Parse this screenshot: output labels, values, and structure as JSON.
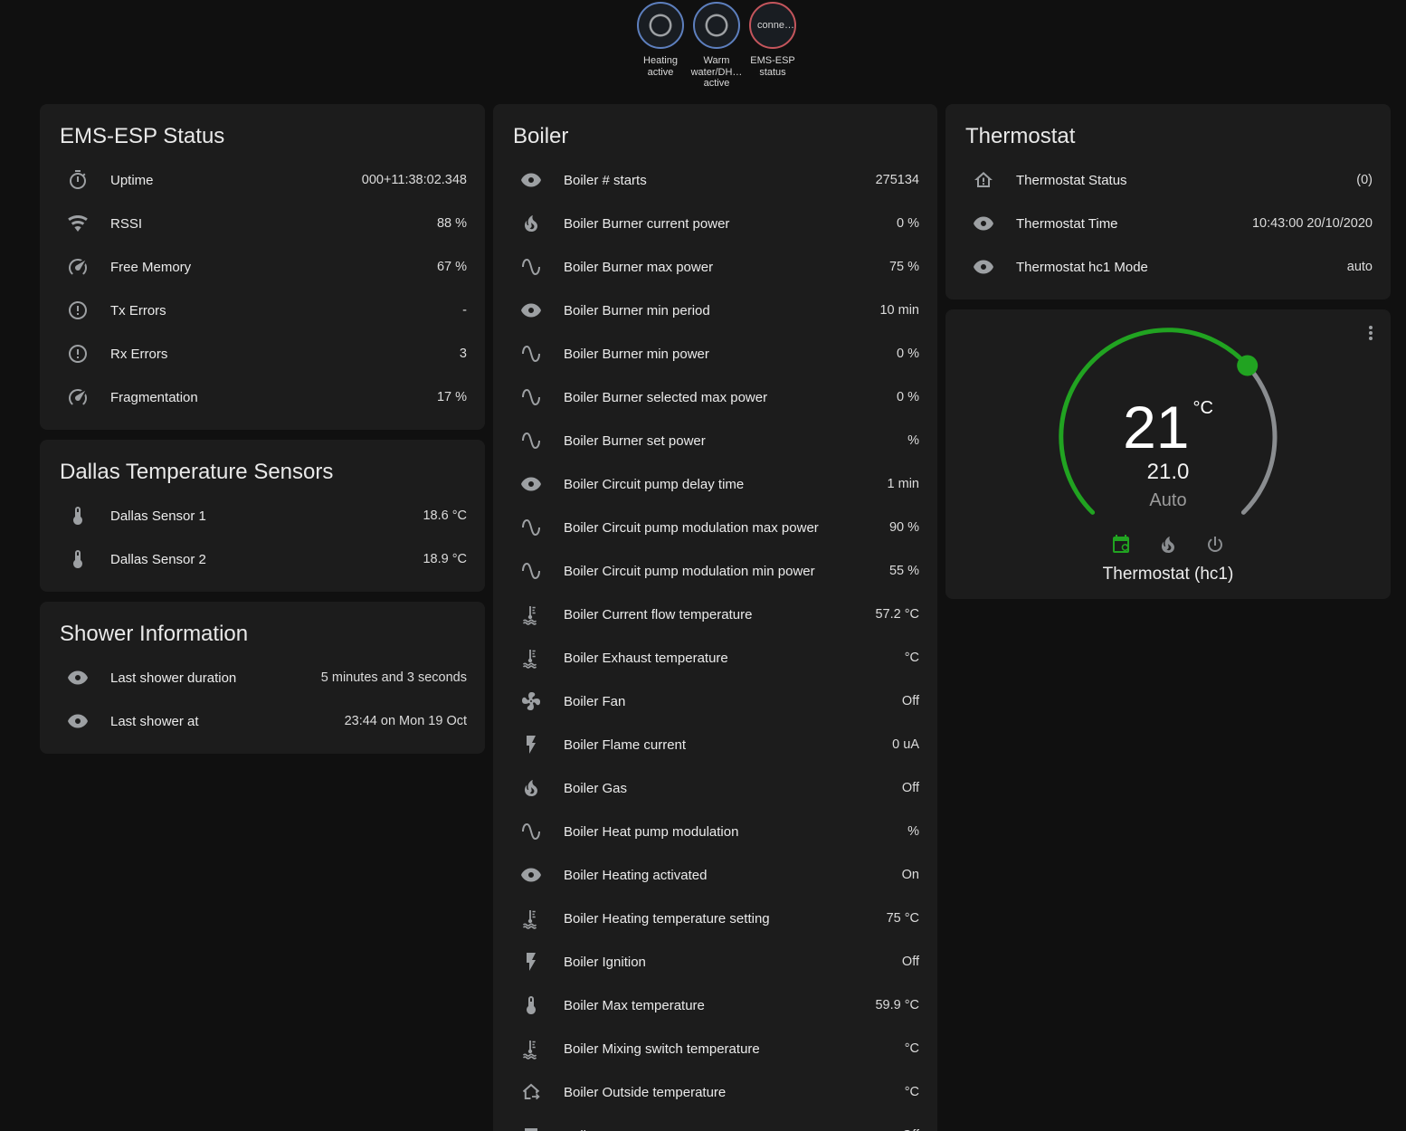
{
  "colors": {
    "page_bg": "#101010",
    "card_bg": "#1c1c1c",
    "accent_green": "#21a321",
    "badge_blue": "#5d7fbe",
    "badge_red": "#c4555c",
    "icon_gray": "#9da0a3",
    "track_gray": "#8a8d90"
  },
  "badges": [
    {
      "kind": "ok",
      "icon": "radiobox-blank-icon",
      "text": "",
      "label": "Heating active"
    },
    {
      "kind": "ok",
      "icon": "radiobox-blank-icon",
      "text": "",
      "label": "Warm water/DH… active"
    },
    {
      "kind": "error",
      "icon": "",
      "text": "conne…",
      "label": "EMS-ESP status"
    }
  ],
  "cards": {
    "ems": {
      "title": "EMS-ESP Status",
      "rows": [
        {
          "icon": "timer-icon",
          "label": "Uptime",
          "value": "000+11:38:02.348"
        },
        {
          "icon": "wifi-icon",
          "label": "RSSI",
          "value": "88 %"
        },
        {
          "icon": "gauge-icon",
          "label": "Free Memory",
          "value": "67 %"
        },
        {
          "icon": "alert-circle-icon",
          "label": "Tx Errors",
          "value": "-"
        },
        {
          "icon": "alert-circle-icon",
          "label": "Rx Errors",
          "value": "3"
        },
        {
          "icon": "gauge-icon",
          "label": "Fragmentation",
          "value": "17 %"
        }
      ]
    },
    "dallas": {
      "title": "Dallas Temperature Sensors",
      "rows": [
        {
          "icon": "thermometer-icon",
          "label": "Dallas Sensor 1",
          "value": "18.6 °C"
        },
        {
          "icon": "thermometer-icon",
          "label": "Dallas Sensor 2",
          "value": "18.9 °C"
        }
      ]
    },
    "shower": {
      "title": "Shower Information",
      "rows": [
        {
          "icon": "eye-icon",
          "label": "Last shower duration",
          "value": "5 minutes and 3 seconds"
        },
        {
          "icon": "eye-icon",
          "label": "Last shower at",
          "value": "23:44 on Mon 19 Oct"
        }
      ]
    },
    "boiler": {
      "title": "Boiler",
      "rows": [
        {
          "icon": "eye-icon",
          "label": "Boiler # starts",
          "value": "275134"
        },
        {
          "icon": "fire-icon",
          "label": "Boiler Burner current power",
          "value": "0 %"
        },
        {
          "icon": "sine-wave-icon",
          "label": "Boiler Burner max power",
          "value": "75 %"
        },
        {
          "icon": "eye-icon",
          "label": "Boiler Burner min period",
          "value": "10 min"
        },
        {
          "icon": "sine-wave-icon",
          "label": "Boiler Burner min power",
          "value": "0 %"
        },
        {
          "icon": "sine-wave-icon",
          "label": "Boiler Burner selected max power",
          "value": "0 %"
        },
        {
          "icon": "sine-wave-icon",
          "label": "Boiler Burner set power",
          "value": "%"
        },
        {
          "icon": "eye-icon",
          "label": "Boiler Circuit pump delay time",
          "value": "1 min"
        },
        {
          "icon": "sine-wave-icon",
          "label": "Boiler Circuit pump modulation max power",
          "value": "90 %"
        },
        {
          "icon": "sine-wave-icon",
          "label": "Boiler Circuit pump modulation min power",
          "value": "55 %"
        },
        {
          "icon": "coolant-thermometer-icon",
          "label": "Boiler Current flow temperature",
          "value": "57.2 °C"
        },
        {
          "icon": "coolant-thermometer-icon",
          "label": "Boiler Exhaust temperature",
          "value": "°C"
        },
        {
          "icon": "fan-icon",
          "label": "Boiler Fan",
          "value": "Off"
        },
        {
          "icon": "flash-icon",
          "label": "Boiler Flame current",
          "value": "0 uA"
        },
        {
          "icon": "fire-icon",
          "label": "Boiler Gas",
          "value": "Off"
        },
        {
          "icon": "sine-wave-icon",
          "label": "Boiler Heat pump modulation",
          "value": "%"
        },
        {
          "icon": "eye-icon",
          "label": "Boiler Heating activated",
          "value": "On"
        },
        {
          "icon": "coolant-thermometer-icon",
          "label": "Boiler Heating temperature setting",
          "value": "75 °C"
        },
        {
          "icon": "flash-icon",
          "label": "Boiler Ignition",
          "value": "Off"
        },
        {
          "icon": "thermometer-icon",
          "label": "Boiler Max temperature",
          "value": "59.9 °C"
        },
        {
          "icon": "coolant-thermometer-icon",
          "label": "Boiler Mixing switch temperature",
          "value": "°C"
        },
        {
          "icon": "home-export-icon",
          "label": "Boiler Outside temperature",
          "value": "°C"
        },
        {
          "icon": "pump-icon",
          "label": "Boiler Pump",
          "value": "Off"
        }
      ]
    },
    "thermostat": {
      "title": "Thermostat",
      "rows": [
        {
          "icon": "home-alert-icon",
          "label": "Thermostat Status",
          "value": "(0)"
        },
        {
          "icon": "eye-icon",
          "label": "Thermostat Time",
          "value": "10:43:00 20/10/2020"
        },
        {
          "icon": "eye-icon",
          "label": "Thermostat hc1 Mode",
          "value": "auto"
        }
      ]
    }
  },
  "dial": {
    "target": "21",
    "unit": "°C",
    "setpoint": "21.0",
    "mode_label": "Auto",
    "name": "Thermostat (hc1)",
    "menu_icon": "dots-vertical-icon",
    "modes": [
      {
        "icon": "calendar-refresh-icon",
        "active": true
      },
      {
        "icon": "fire-icon",
        "active": false
      },
      {
        "icon": "power-icon",
        "active": false
      }
    ]
  }
}
